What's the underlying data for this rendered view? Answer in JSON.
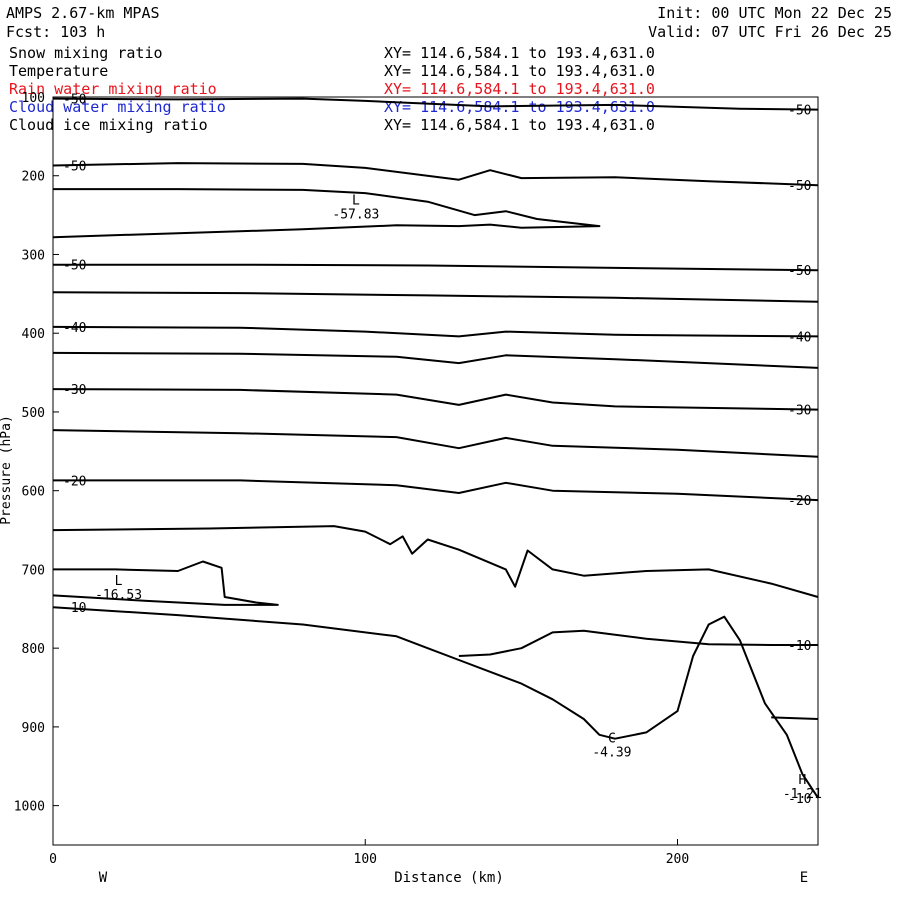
{
  "header": {
    "model": "AMPS 2.67-km MPAS",
    "forecast": "Fcst: 103 h",
    "init": "Init: 00 UTC Mon 22 Dec 25",
    "valid": "Valid: 07 UTC Fri 26 Dec 25"
  },
  "fields": [
    {
      "name": "Snow mixing ratio",
      "xy": "XY= 114.6,584.1 to 193.4,631.0",
      "color": "#000000"
    },
    {
      "name": "Temperature",
      "xy": "XY= 114.6,584.1 to 193.4,631.0",
      "color": "#000000"
    },
    {
      "name": "Rain water mixing ratio",
      "xy": "XY= 114.6,584.1 to 193.4,631.0",
      "color": "#e8141e"
    },
    {
      "name": "Cloud water mixing ratio",
      "xy": "XY= 114.6,584.1 to 193.4,631.0",
      "color": "#1e28d2"
    },
    {
      "name": "Cloud ice mixing ratio",
      "xy": "XY= 114.6,584.1 to 193.4,631.0",
      "color": "#000000"
    }
  ],
  "chart_data": {
    "type": "line",
    "xlabel": "Distance (km)",
    "ylabel": "Pressure (hPa)",
    "xlim": [
      0,
      245
    ],
    "ylim": [
      1050,
      100
    ],
    "xticks": [
      0,
      100,
      200
    ],
    "yticks": [
      100,
      200,
      300,
      400,
      500,
      600,
      700,
      800,
      900,
      1000
    ],
    "side_labels": {
      "left": "W",
      "right": "E"
    },
    "isotherms": [
      {
        "label": "-50",
        "points": [
          [
            0,
            102
          ],
          [
            40,
            103
          ],
          [
            80,
            102
          ],
          [
            100,
            105
          ],
          [
            140,
            112
          ],
          [
            180,
            110
          ],
          [
            220,
            115
          ],
          [
            245,
            116
          ]
        ]
      },
      {
        "label": "-50",
        "points": [
          [
            0,
            187
          ],
          [
            40,
            184
          ],
          [
            80,
            185
          ],
          [
            100,
            190
          ],
          [
            130,
            205
          ],
          [
            140,
            193
          ],
          [
            150,
            203
          ],
          [
            180,
            202
          ],
          [
            210,
            207
          ],
          [
            245,
            212
          ]
        ]
      },
      {
        "label": "",
        "points": [
          [
            0,
            217
          ],
          [
            40,
            217
          ],
          [
            80,
            218
          ],
          [
            100,
            222
          ],
          [
            120,
            233
          ],
          [
            135,
            250
          ],
          [
            145,
            245
          ],
          [
            155,
            255
          ],
          [
            175,
            264
          ],
          [
            150,
            266
          ],
          [
            140,
            262
          ],
          [
            130,
            264
          ],
          [
            110,
            263
          ],
          [
            80,
            268
          ],
          [
            40,
            273
          ],
          [
            0,
            278
          ]
        ]
      },
      {
        "label": "-50",
        "points": [
          [
            0,
            313
          ],
          [
            60,
            313
          ],
          [
            120,
            314
          ],
          [
            180,
            317
          ],
          [
            245,
            320
          ]
        ]
      },
      {
        "label": "",
        "points": [
          [
            0,
            348
          ],
          [
            60,
            349
          ],
          [
            120,
            352
          ],
          [
            180,
            355
          ],
          [
            245,
            360
          ]
        ]
      },
      {
        "label": "-40",
        "points": [
          [
            0,
            392
          ],
          [
            60,
            393
          ],
          [
            100,
            398
          ],
          [
            130,
            404
          ],
          [
            145,
            398
          ],
          [
            180,
            402
          ],
          [
            245,
            404
          ]
        ]
      },
      {
        "label": "",
        "points": [
          [
            0,
            425
          ],
          [
            60,
            426
          ],
          [
            110,
            430
          ],
          [
            130,
            438
          ],
          [
            145,
            428
          ],
          [
            180,
            433
          ],
          [
            245,
            444
          ]
        ]
      },
      {
        "label": "-30",
        "points": [
          [
            0,
            471
          ],
          [
            60,
            472
          ],
          [
            110,
            478
          ],
          [
            130,
            491
          ],
          [
            145,
            478
          ],
          [
            160,
            488
          ],
          [
            180,
            493
          ],
          [
            245,
            497
          ]
        ]
      },
      {
        "label": "",
        "points": [
          [
            0,
            523
          ],
          [
            60,
            527
          ],
          [
            110,
            532
          ],
          [
            130,
            546
          ],
          [
            145,
            533
          ],
          [
            160,
            543
          ],
          [
            200,
            548
          ],
          [
            245,
            557
          ]
        ]
      },
      {
        "label": "-20",
        "points": [
          [
            0,
            587
          ],
          [
            60,
            587
          ],
          [
            110,
            593
          ],
          [
            130,
            603
          ],
          [
            145,
            590
          ],
          [
            160,
            600
          ],
          [
            200,
            604
          ],
          [
            245,
            612
          ]
        ]
      },
      {
        "label": "",
        "points": [
          [
            0,
            650
          ],
          [
            50,
            648
          ],
          [
            90,
            645
          ],
          [
            100,
            652
          ],
          [
            108,
            668
          ],
          [
            112,
            658
          ],
          [
            115,
            680
          ],
          [
            120,
            662
          ],
          [
            130,
            675
          ],
          [
            145,
            700
          ],
          [
            148,
            722
          ],
          [
            152,
            676
          ],
          [
            160,
            700
          ],
          [
            170,
            708
          ],
          [
            190,
            702
          ],
          [
            210,
            700
          ],
          [
            230,
            718
          ],
          [
            245,
            735
          ]
        ]
      },
      {
        "label": "",
        "points": [
          [
            0,
            700
          ],
          [
            20,
            700
          ],
          [
            40,
            702
          ],
          [
            48,
            690
          ],
          [
            54,
            698
          ],
          [
            55,
            735
          ],
          [
            65,
            742
          ],
          [
            72,
            745
          ],
          [
            55,
            745
          ],
          [
            30,
            740
          ],
          [
            0,
            733
          ]
        ]
      },
      {
        "label": "-10",
        "points": [
          [
            0,
            748
          ],
          [
            40,
            758
          ],
          [
            80,
            770
          ],
          [
            110,
            785
          ],
          [
            120,
            800
          ],
          [
            130,
            815
          ],
          [
            140,
            830
          ],
          [
            150,
            845
          ],
          [
            160,
            865
          ],
          [
            170,
            890
          ],
          [
            175,
            910
          ],
          [
            180,
            915
          ],
          [
            190,
            907
          ],
          [
            200,
            880
          ],
          [
            205,
            810
          ],
          [
            210,
            770
          ],
          [
            215,
            760
          ],
          [
            220,
            790
          ],
          [
            228,
            870
          ],
          [
            235,
            910
          ],
          [
            240,
            960
          ],
          [
            245,
            990
          ]
        ]
      },
      {
        "label": "-10",
        "points": [
          [
            130,
            810
          ],
          [
            140,
            808
          ],
          [
            150,
            800
          ],
          [
            160,
            780
          ],
          [
            170,
            778
          ],
          [
            190,
            788
          ],
          [
            210,
            795
          ],
          [
            230,
            796
          ],
          [
            245,
            796
          ]
        ]
      },
      {
        "label": "",
        "points": [
          [
            230,
            888
          ],
          [
            245,
            890
          ]
        ]
      }
    ],
    "extrema": [
      {
        "symbol": "L",
        "value": "-57.83",
        "x": 97,
        "y": 252
      },
      {
        "symbol": "L",
        "value": "-16.53",
        "x": 21,
        "y": 735
      },
      {
        "symbol": "C",
        "value": "-4.39",
        "x": 179,
        "y": 935
      },
      {
        "symbol": "H",
        "value": "-1.21",
        "x": 240,
        "y": 988
      }
    ]
  }
}
